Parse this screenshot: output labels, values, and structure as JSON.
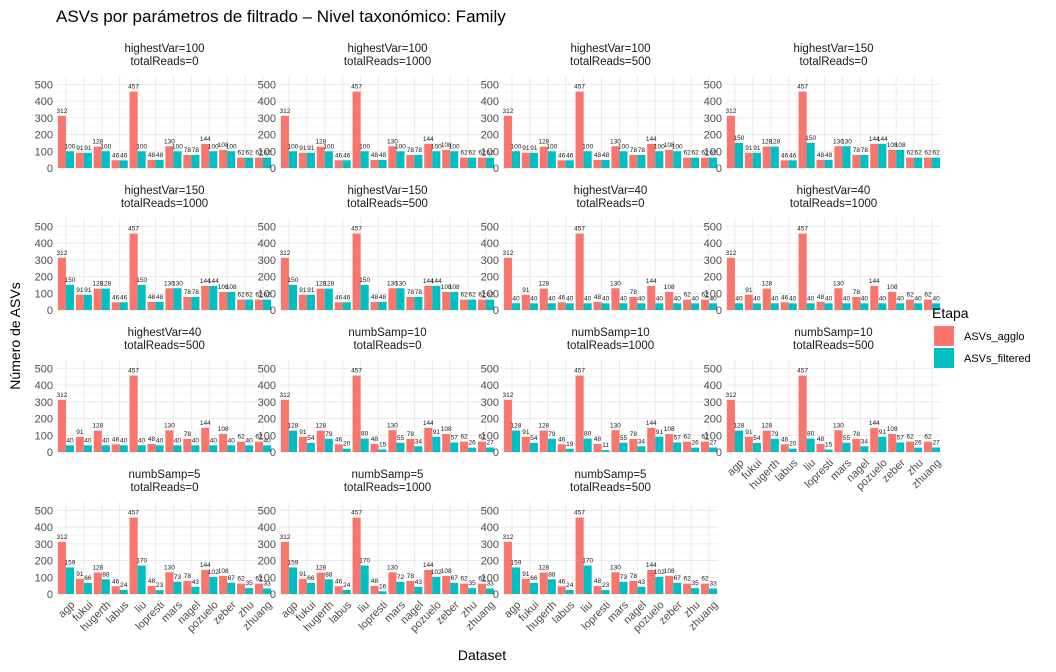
{
  "chart_data": {
    "type": "bar",
    "title": "ASVs por parámetros de filtrado – Nivel taxonómico: Family",
    "xlabel": "Dataset",
    "ylabel": "Número de ASVs",
    "ylim": [
      0,
      550
    ],
    "yticks": [
      0,
      100,
      200,
      300,
      400,
      500
    ],
    "grid": true,
    "legend": {
      "title": "Etapa",
      "position": "right"
    },
    "categories": [
      "agp",
      "fukui",
      "hugerth",
      "labus",
      "liu",
      "lopresti",
      "mars",
      "nagel",
      "pozuelo",
      "zeber",
      "zhu",
      "zhuang"
    ],
    "series_names": [
      "ASVs_agglo",
      "ASVs_filtered"
    ],
    "colors": {
      "ASVs_agglo": "#F8766D",
      "ASVs_filtered": "#00BFC4"
    },
    "agglo": [
      312,
      91,
      128,
      46,
      457,
      48,
      130,
      78,
      144,
      108,
      62,
      62
    ],
    "panels": [
      {
        "line1": "highestVar=100",
        "line2": "totalReads=0",
        "filtered": [
          100,
          91,
          100,
          46,
          100,
          48,
          100,
          78,
          100,
          100,
          62,
          62
        ]
      },
      {
        "line1": "highestVar=100",
        "line2": "totalReads=1000",
        "filtered": [
          100,
          91,
          100,
          46,
          100,
          48,
          100,
          78,
          100,
          100,
          62,
          62
        ]
      },
      {
        "line1": "highestVar=100",
        "line2": "totalReads=500",
        "filtered": [
          100,
          91,
          100,
          46,
          100,
          48,
          100,
          78,
          100,
          100,
          62,
          62
        ]
      },
      {
        "line1": "highestVar=150",
        "line2": "totalReads=0",
        "filtered": [
          150,
          91,
          128,
          46,
          150,
          48,
          130,
          78,
          144,
          108,
          62,
          62
        ]
      },
      {
        "line1": "highestVar=150",
        "line2": "totalReads=1000",
        "filtered": [
          150,
          91,
          128,
          46,
          150,
          48,
          130,
          78,
          144,
          108,
          62,
          62
        ]
      },
      {
        "line1": "highestVar=150",
        "line2": "totalReads=500",
        "filtered": [
          150,
          91,
          128,
          46,
          150,
          48,
          130,
          78,
          144,
          108,
          62,
          62
        ]
      },
      {
        "line1": "highestVar=40",
        "line2": "totalReads=0",
        "filtered": [
          40,
          40,
          40,
          40,
          40,
          40,
          40,
          40,
          40,
          40,
          40,
          40
        ]
      },
      {
        "line1": "highestVar=40",
        "line2": "totalReads=1000",
        "filtered": [
          40,
          40,
          40,
          40,
          40,
          40,
          40,
          40,
          40,
          40,
          40,
          40
        ]
      },
      {
        "line1": "highestVar=40",
        "line2": "totalReads=500",
        "filtered": [
          40,
          40,
          40,
          40,
          40,
          40,
          40,
          40,
          40,
          40,
          40,
          40
        ]
      },
      {
        "line1": "numbSamp=10",
        "line2": "totalReads=0",
        "filtered": [
          128,
          54,
          79,
          20,
          80,
          15,
          55,
          34,
          91,
          57,
          26,
          27
        ]
      },
      {
        "line1": "numbSamp=10",
        "line2": "totalReads=1000",
        "filtered": [
          128,
          54,
          79,
          19,
          80,
          11,
          55,
          34,
          91,
          57,
          26,
          27
        ]
      },
      {
        "line1": "numbSamp=10",
        "line2": "totalReads=500",
        "filtered": [
          128,
          54,
          79,
          20,
          80,
          15,
          55,
          34,
          91,
          57,
          26,
          27
        ]
      },
      {
        "line1": "numbSamp=5",
        "line2": "totalReads=0",
        "filtered": [
          159,
          66,
          88,
          24,
          170,
          23,
          73,
          43,
          102,
          67,
          35,
          33
        ]
      },
      {
        "line1": "numbSamp=5",
        "line2": "totalReads=1000",
        "filtered": [
          159,
          66,
          88,
          24,
          170,
          16,
          72,
          43,
          102,
          67,
          35,
          33
        ]
      },
      {
        "line1": "numbSamp=5",
        "line2": "totalReads=500",
        "filtered": [
          159,
          66,
          88,
          24,
          170,
          23,
          73,
          43,
          102,
          67,
          35,
          33
        ]
      }
    ]
  }
}
